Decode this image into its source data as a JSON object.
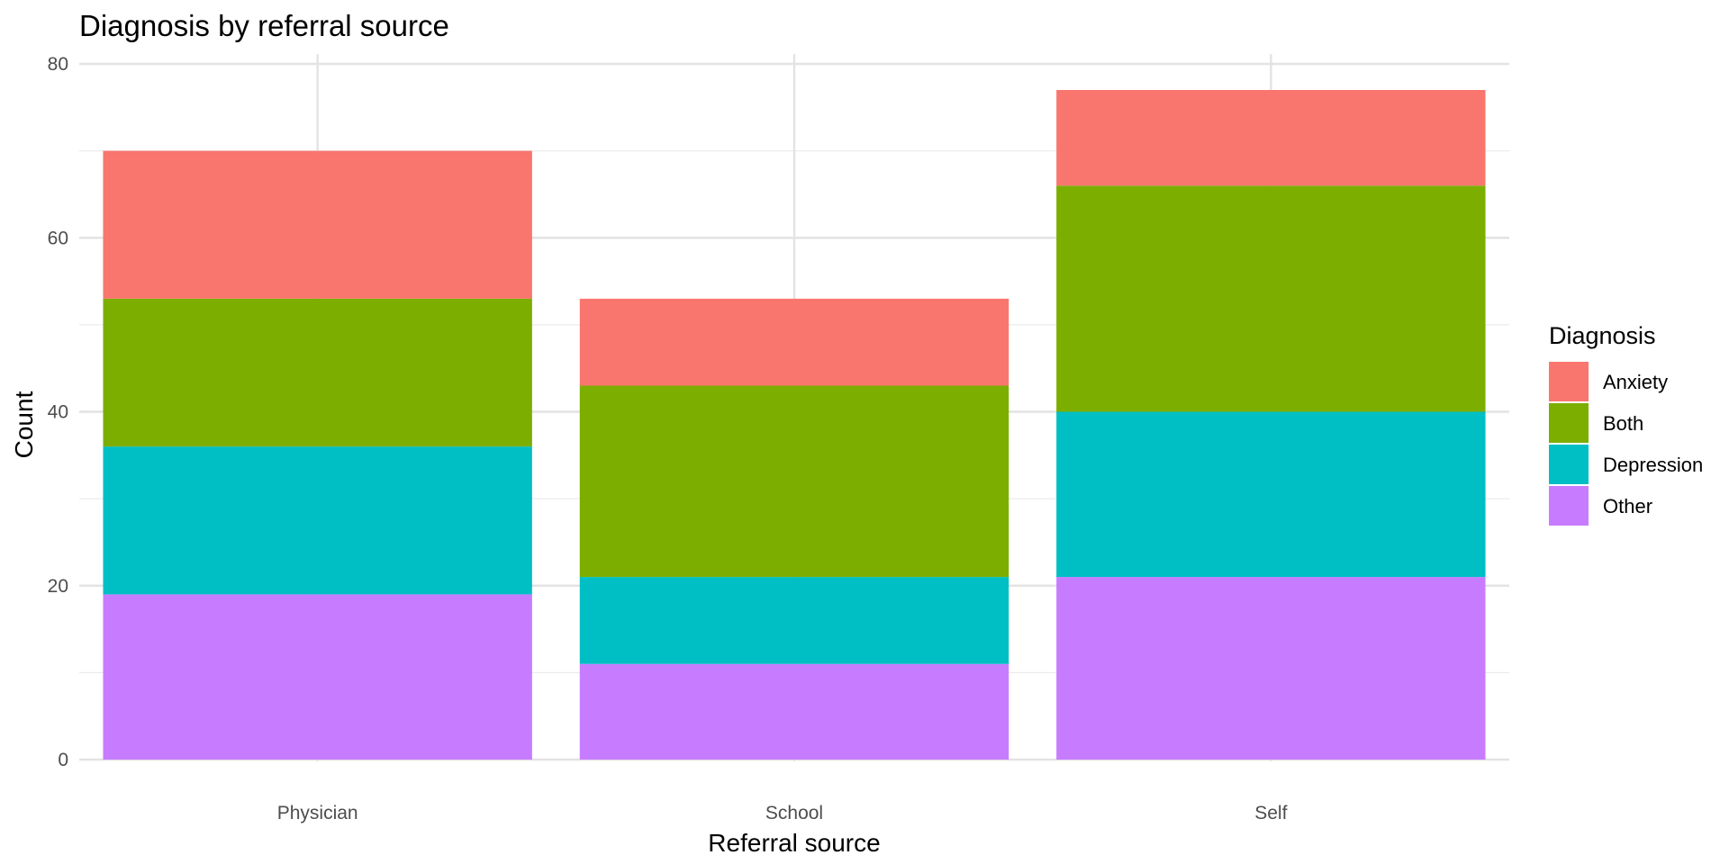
{
  "chart_data": {
    "type": "bar",
    "stacked": true,
    "title": "Diagnosis by referral source",
    "xlabel": "Referral source",
    "ylabel": "Count",
    "categories": [
      "Physician",
      "School",
      "Self"
    ],
    "ylim": [
      0,
      80
    ],
    "y_ticks": [
      "0",
      "20",
      "40",
      "60",
      "80"
    ],
    "grid": true,
    "legend": {
      "title": "Diagnosis",
      "position": "right"
    },
    "series": [
      {
        "name": "Anxiety",
        "color": "#F8766D",
        "values": [
          17,
          10,
          11
        ]
      },
      {
        "name": "Both",
        "color": "#7CAE00",
        "values": [
          17,
          22,
          26
        ]
      },
      {
        "name": "Depression",
        "color": "#00BFC4",
        "values": [
          17,
          10,
          19
        ]
      },
      {
        "name": "Other",
        "color": "#C77CFF",
        "values": [
          19,
          11,
          21
        ]
      }
    ]
  }
}
